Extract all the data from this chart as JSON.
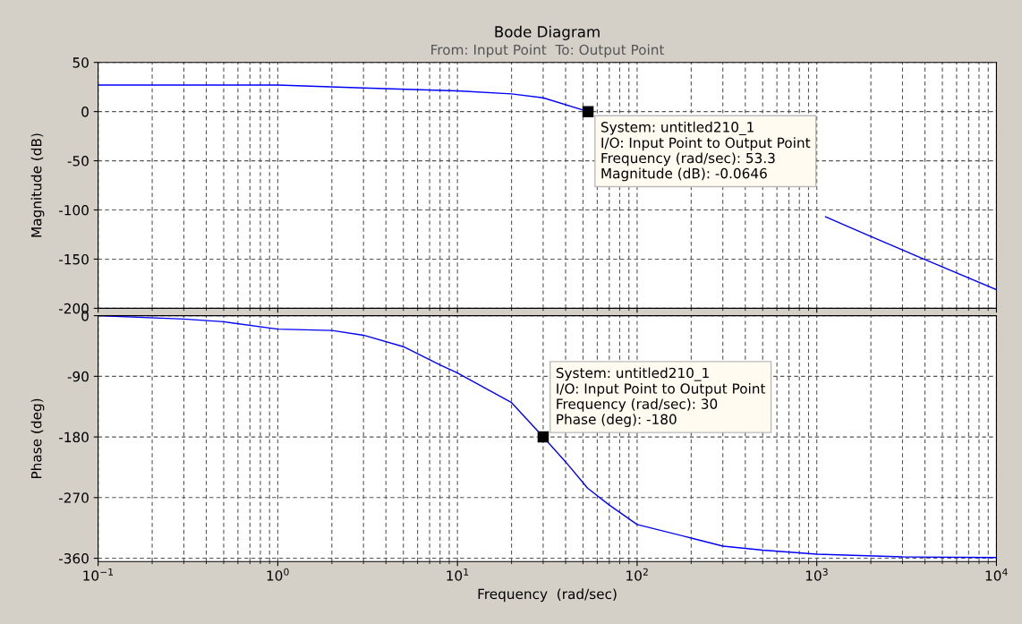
{
  "chart_data": [
    {
      "type": "line",
      "title": "Bode Diagram",
      "subtitle": "From: Input Point  To: Output Point",
      "ylabel": "Magnitude (dB)",
      "log": "x",
      "grid": true,
      "tick_labels": "y",
      "xlim": [
        0.1,
        10000
      ],
      "xticks": [
        {
          "value": 0.1,
          "label": null
        },
        {
          "value": 1,
          "label": null
        },
        {
          "value": 10,
          "label": null
        },
        {
          "value": 100,
          "label": null
        },
        {
          "value": 1000,
          "label": null
        },
        {
          "value": 10000,
          "label": null
        }
      ],
      "ylim": [
        -200,
        50
      ],
      "yticks": [
        -200,
        -150,
        -100,
        -50,
        0,
        50
      ],
      "series": [
        {
          "color": "#0000ff",
          "x": [
            0.1,
            1,
            3,
            10,
            20,
            30,
            53.3,
            100,
            300,
            1119,
            2000,
            5000,
            10000
          ],
          "values": [
            27,
            27,
            24,
            21,
            18,
            14,
            -0.0646,
            null,
            null,
            -107,
            -127,
            -158,
            -181
          ]
        }
      ],
      "annotations": [
        {
          "text": "System: untitled210_1\nI/O: Input Point to Output Point\nFrequency (rad/sec): 53.3\nMagnitude (dB): -0.0646",
          "x": 53.3,
          "y": -0.0646
        }
      ]
    },
    {
      "type": "line",
      "xlabel": "Frequency  (rad/sec)",
      "ylabel": "Phase (deg)",
      "log": "x",
      "grid": true,
      "xlim": [
        0.1,
        10000
      ],
      "xticks": [
        {
          "value": 0.1,
          "label": "10$^{−1}$"
        },
        {
          "value": 1,
          "label": "10$^{0}$"
        },
        {
          "value": 10,
          "label": "10$^{1}$"
        },
        {
          "value": 100,
          "label": "10$^{2}$"
        },
        {
          "value": 1000,
          "label": "10$^{3}$"
        },
        {
          "value": 10000,
          "label": "10$^{4}$"
        }
      ],
      "ylim": [
        -365,
        0
      ],
      "yticks": [
        -360,
        -270,
        -180,
        -90,
        0
      ],
      "series": [
        {
          "color": "#0000ff",
          "x": [
            0.1,
            0.3,
            0.5,
            1,
            2,
            3,
            5,
            8,
            10,
            20,
            30,
            40,
            53,
            70,
            100,
            200,
            300,
            500,
            1000,
            3000,
            10000
          ],
          "values": [
            0,
            -5,
            -9,
            -20,
            -22,
            -29,
            -46,
            -73,
            -85,
            -129,
            -180,
            -217,
            -256,
            -281,
            -310,
            -330,
            -342,
            -348,
            -354,
            -358,
            -359
          ]
        }
      ],
      "annotations": [
        {
          "text": "System: untitled210_1\nI/O: Input Point to Output Point\nFrequency (rad/sec): 30\nPhase (deg): -180",
          "x": 30,
          "y": -180
        }
      ]
    }
  ]
}
